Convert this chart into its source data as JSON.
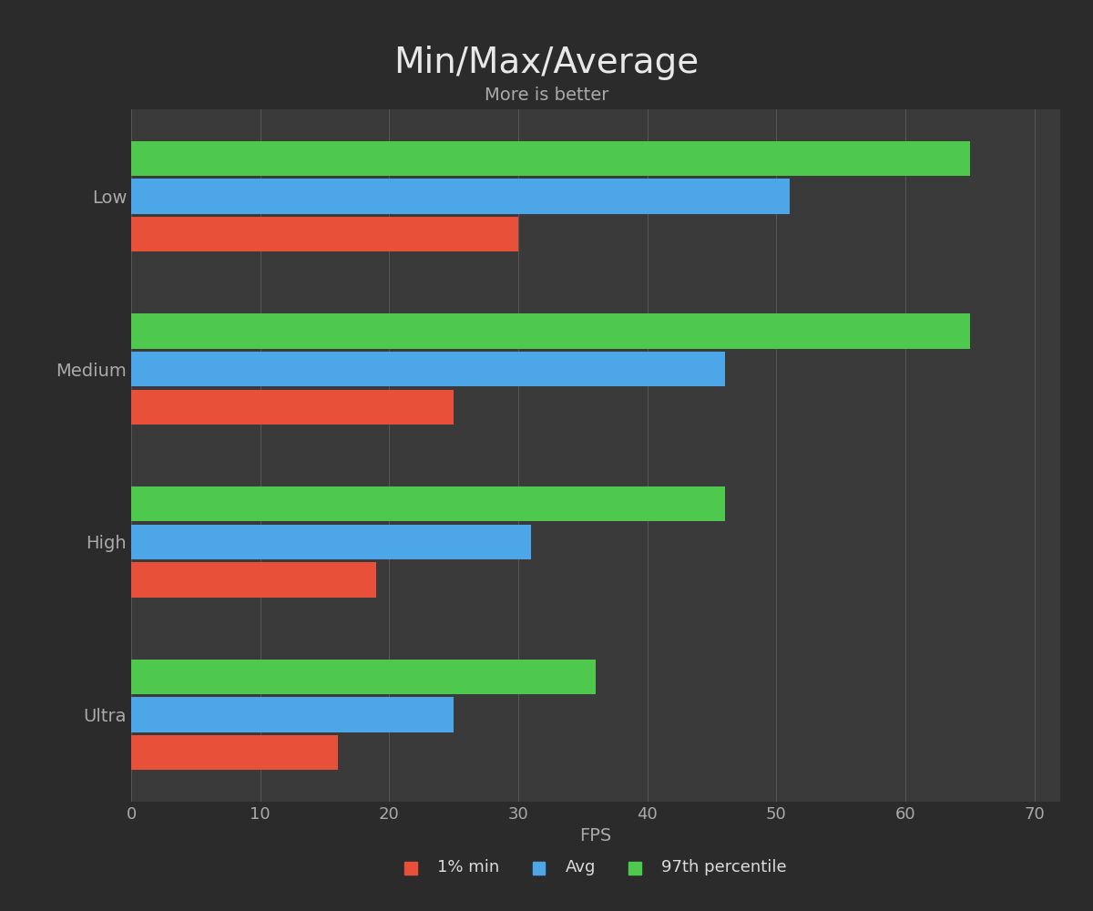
{
  "title": "Min/Max/Average",
  "subtitle": "More is better",
  "categories": [
    "Low",
    "Medium",
    "High",
    "Ultra"
  ],
  "series": {
    "1% min": [
      30,
      25,
      19,
      16
    ],
    "Avg": [
      51,
      46,
      31,
      25
    ],
    "97th percentile": [
      65,
      65,
      46,
      36
    ]
  },
  "colors": {
    "1% min": "#e8503a",
    "Avg": "#4da6e8",
    "97th percentile": "#4ec94e"
  },
  "xlabel": "FPS",
  "xlim": [
    0,
    72
  ],
  "xticks": [
    0,
    10,
    20,
    30,
    40,
    50,
    60,
    70
  ],
  "background_color": "#2b2b2b",
  "axes_color": "#3a3a3a",
  "title_color": "#e8e8e8",
  "tick_color": "#aaaaaa",
  "grid_color": "#555555",
  "legend_text_color": "#dddddd",
  "title_fontsize": 28,
  "subtitle_fontsize": 14,
  "label_fontsize": 14,
  "tick_fontsize": 13,
  "legend_fontsize": 13,
  "bar_height": 0.22,
  "bar_gap": 0.24
}
